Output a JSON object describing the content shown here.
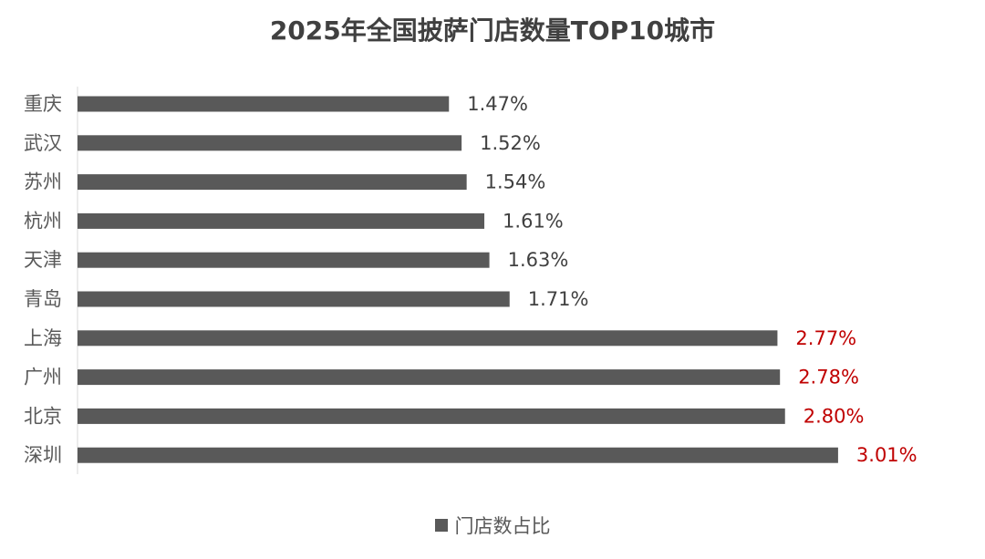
{
  "chart_data": {
    "type": "bar",
    "orientation": "horizontal",
    "title": "2025年全国披萨门店数量TOP10城市",
    "categories": [
      "重庆",
      "武汉",
      "苏州",
      "杭州",
      "天津",
      "青岛",
      "上海",
      "广州",
      "北京",
      "深圳"
    ],
    "series": [
      {
        "name": "门店数占比",
        "values": [
          1.47,
          1.52,
          1.54,
          1.61,
          1.63,
          1.71,
          2.77,
          2.78,
          2.8,
          3.01
        ],
        "labels": [
          "1.47%",
          "1.52%",
          "1.54%",
          "1.61%",
          "1.63%",
          "1.71%",
          "2.77%",
          "2.78%",
          "2.80%",
          "3.01%"
        ]
      }
    ],
    "xlim": [
      0,
      3.05
    ],
    "grid": false,
    "legend_position": "bottom",
    "bar_color": "#595959",
    "label_color_default": "#404040",
    "label_color_highlight": "#c00000",
    "highlight_threshold": 2.5
  }
}
